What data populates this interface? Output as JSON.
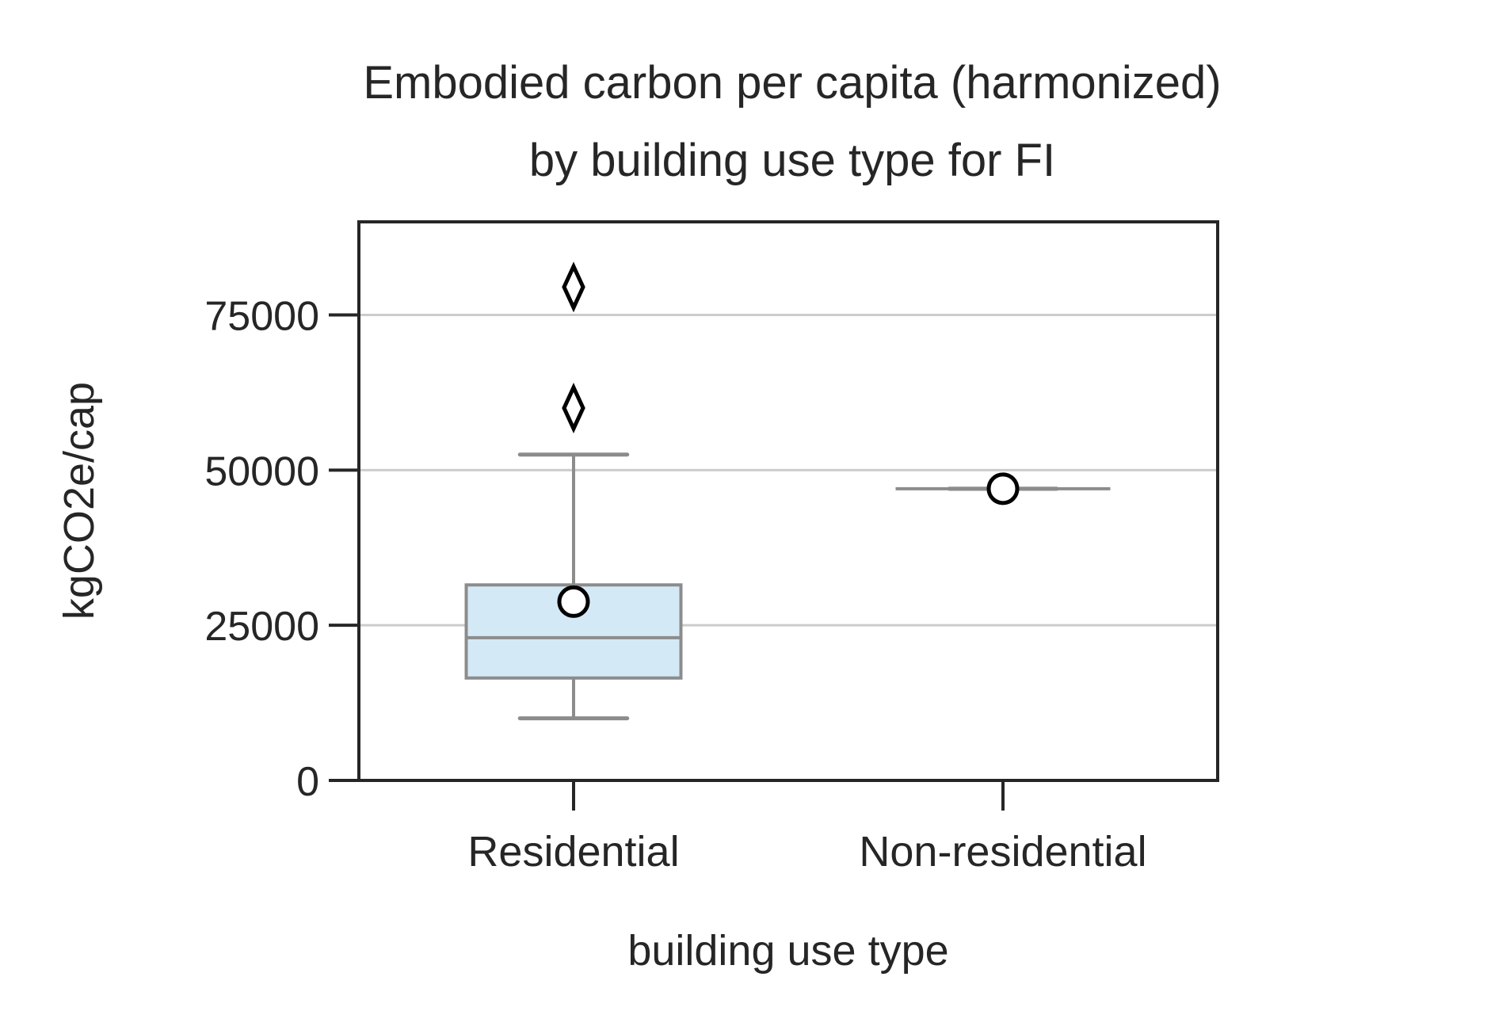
{
  "chart_data": {
    "type": "box",
    "title_line1": "Embodied carbon per capita (harmonized)",
    "title_line2": "by building use type for FI",
    "xlabel": "building use type",
    "ylabel": "kgCO2e/cap",
    "ylim": [
      0,
      90000
    ],
    "yticks": [
      0,
      25000,
      50000,
      75000
    ],
    "ytick_labels": [
      "0",
      "25000",
      "50000",
      "75000"
    ],
    "grid": "horizontal",
    "colors": {
      "box_fill": "#d4e9f6",
      "box_edge": "#8c8c8c",
      "grid": "#cccccc",
      "axes": "#262626",
      "marker_edge": "#000000",
      "mean_fill": "#ffffff"
    },
    "categories": [
      "Residential",
      "Non-residential"
    ],
    "boxes": [
      {
        "category": "Residential",
        "whisker_low": 10000,
        "q1": 16500,
        "median": 23000,
        "q3": 31500,
        "whisker_high": 52500,
        "mean": 28800,
        "outliers": [
          79500,
          60000
        ]
      },
      {
        "category": "Non-residential",
        "whisker_low": 47000,
        "q1": 47000,
        "median": 47000,
        "q3": 47000,
        "whisker_high": 47000,
        "mean": 47000,
        "outliers": []
      }
    ]
  }
}
